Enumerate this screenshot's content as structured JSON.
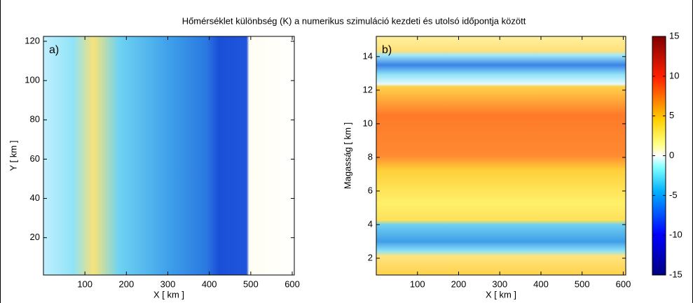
{
  "title": "Hőmérséklet különbség (K) a numerikus szimuláció kezdeti és utolsó időpontja között",
  "chart_data": [
    {
      "type": "heatmap",
      "colormap": "jet",
      "panel_label": "a)",
      "x_label": "X [ km ]",
      "y_label": "Y [ km ]",
      "xlim": [
        0,
        605
      ],
      "ylim": [
        1,
        122.5
      ],
      "xticks": [
        100,
        200,
        300,
        400,
        500,
        600
      ],
      "yticks": [
        20,
        40,
        60,
        80,
        100,
        120
      ]
    },
    {
      "type": "heatmap",
      "colormap": "jet",
      "panel_label": "b)",
      "x_label": "X [ km ]",
      "y_label": "Magasság [ km ]",
      "xlim": [
        0,
        606
      ],
      "ylim": [
        1,
        15.2
      ],
      "xticks": [
        100,
        200,
        300,
        400,
        500,
        600
      ],
      "yticks": [
        2,
        4,
        6,
        8,
        10,
        12,
        14
      ]
    }
  ],
  "colorbar": {
    "ylim": [
      -15,
      15
    ],
    "yticks": [
      -15,
      -10,
      -5,
      0,
      5,
      10,
      15
    ]
  }
}
